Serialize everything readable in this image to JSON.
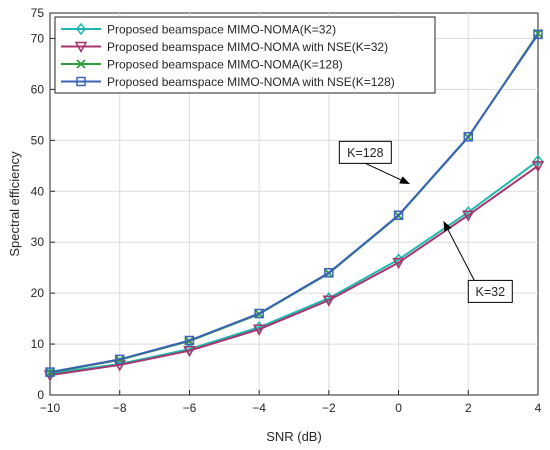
{
  "chart_data": {
    "type": "line",
    "xlabel": "SNR (dB)",
    "ylabel": "Spectral efficiency",
    "xlim": [
      -10,
      4
    ],
    "ylim": [
      0,
      75
    ],
    "x": [
      -10,
      -8,
      -6,
      -4,
      -2,
      0,
      2,
      4
    ],
    "xticks": [
      -10,
      -8,
      -6,
      -4,
      -2,
      0,
      2,
      4
    ],
    "xtick_labels": [
      "−10",
      "−8",
      "−6",
      "−4",
      "−2",
      "0",
      "2",
      "4"
    ],
    "yticks": [
      0,
      10,
      20,
      30,
      40,
      50,
      60,
      70,
      75
    ],
    "grid": true,
    "legend_position": "top-left",
    "series": [
      {
        "name": "Proposed beamspace MIMO-NOMA(K=32)",
        "color": "#1fb8b0",
        "marker": "diamond",
        "values": [
          4.2,
          6.1,
          9.0,
          13.3,
          19.0,
          26.6,
          35.9,
          46.0
        ]
      },
      {
        "name": "Proposed beamspace MIMO-NOMA with NSE(K=32)",
        "color": "#a8336e",
        "marker": "triangle-down",
        "values": [
          3.9,
          5.9,
          8.7,
          12.9,
          18.6,
          26.0,
          35.3,
          45.0
        ]
      },
      {
        "name": "Proposed beamspace MIMO-NOMA(K=128)",
        "color": "#2e9e36",
        "marker": "x",
        "values": [
          4.4,
          6.9,
          10.6,
          15.9,
          23.9,
          35.2,
          50.6,
          71.0
        ]
      },
      {
        "name": "Proposed beamspace MIMO-NOMA with NSE(K=128)",
        "color": "#3a63b5",
        "marker": "square",
        "values": [
          4.5,
          7.0,
          10.7,
          16.0,
          24.0,
          35.3,
          50.7,
          70.8
        ]
      }
    ],
    "annotations": [
      {
        "text": "K=128",
        "box_x": -1.7,
        "box_y": 49.8,
        "arrow_x": 0.3,
        "arrow_y": 41.5
      },
      {
        "text": "K=32",
        "box_x": 2.0,
        "box_y": 22.5,
        "arrow_x": 1.3,
        "arrow_y": 34.0
      }
    ]
  }
}
